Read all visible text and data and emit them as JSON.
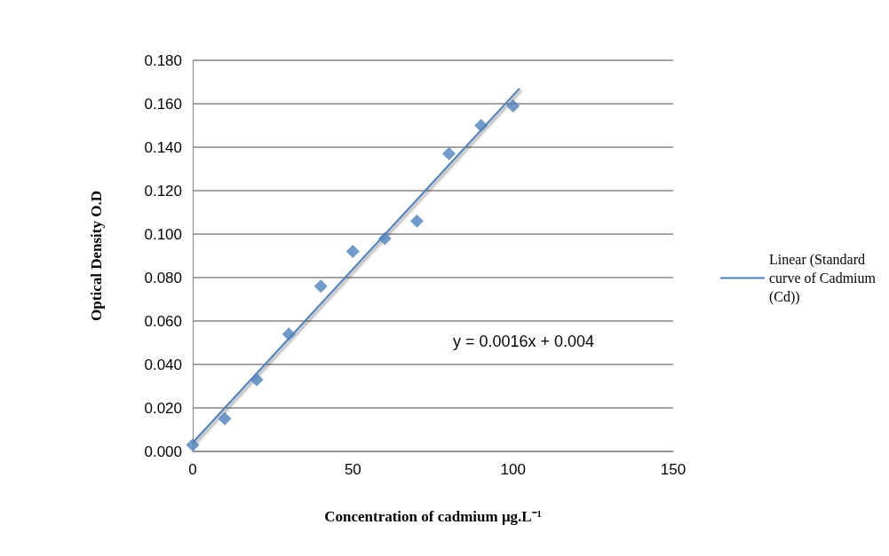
{
  "chart_data": {
    "type": "scatter",
    "xlabel": "Concentration of cadmium μg.L⁻¹",
    "ylabel": "Optical Density O.D",
    "xlim": [
      0,
      150
    ],
    "xticks": [
      0,
      50,
      100,
      150
    ],
    "ylim": [
      0,
      0.18
    ],
    "yticks": [
      {
        "value": 0,
        "label": "0.000"
      },
      {
        "value": 0.02,
        "label": "0.020"
      },
      {
        "value": 0.04,
        "label": "0.040"
      },
      {
        "value": 0.06,
        "label": "0.060"
      },
      {
        "value": 0.08,
        "label": "0.080"
      },
      {
        "value": 0.1,
        "label": "0.100"
      },
      {
        "value": 0.12,
        "label": "0.120"
      },
      {
        "value": 0.14,
        "label": "0.140"
      },
      {
        "value": 0.16,
        "label": "0.160"
      },
      {
        "value": 0.18,
        "label": "0.180"
      }
    ],
    "grid": "y",
    "legend": "right",
    "series": [
      {
        "marker": "diamond",
        "color": "#4f81bd",
        "x": [
          0,
          10,
          20,
          30,
          40,
          50,
          60,
          70,
          80,
          90,
          100
        ],
        "values": [
          0.003,
          0.015,
          0.033,
          0.054,
          0.076,
          0.092,
          0.098,
          0.106,
          0.137,
          0.15,
          0.159
        ]
      },
      {
        "type": "line",
        "name": "Linear (Standard curve of Cadmium (Cd))",
        "marker": "none",
        "line_style": "solid",
        "color": "#4a7ebb",
        "x": [
          0,
          102
        ],
        "values": [
          0.004,
          0.167
        ]
      }
    ],
    "annotations": [
      "y = 0.0016x + 0.004"
    ]
  }
}
